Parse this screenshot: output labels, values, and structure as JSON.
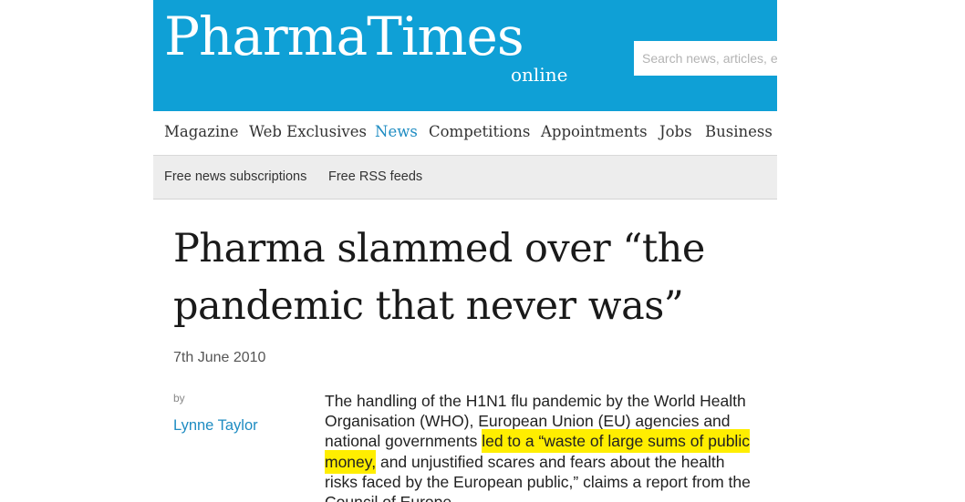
{
  "header": {
    "logo_main": "PharmaTimes",
    "logo_sub": "online",
    "search_placeholder": "Search news, articles, etc",
    "background_color": "#0fa0d6"
  },
  "nav": {
    "items": [
      {
        "label": "Magazine",
        "active": false
      },
      {
        "label": "Web Exclusives",
        "active": false
      },
      {
        "label": "News",
        "active": true
      },
      {
        "label": "Competitions",
        "active": false
      },
      {
        "label": "Appointments",
        "active": false
      },
      {
        "label": "Jobs",
        "active": false
      },
      {
        "label": "Business I",
        "active": false
      }
    ],
    "active_color": "#1e8cc2"
  },
  "subnav": {
    "items": [
      "Free news subscriptions",
      "Free RSS feeds"
    ]
  },
  "article": {
    "title": "Pharma slammed over “the pandemic that never was”",
    "date": "7th June 2010",
    "by_label": "by",
    "author": "Lynne Taylor",
    "body_before": "The handling of the H1N1 flu pandemic by the World Health Organisation (WHO), European Union (EU) agencies and national governments ",
    "body_highlight": "led to a “waste of large sums of public money,",
    "body_after": " and unjustified scares and fears about the health risks faced by the European public,” claims a report from the Council of Europe",
    "highlight_color": "#ffee00"
  }
}
